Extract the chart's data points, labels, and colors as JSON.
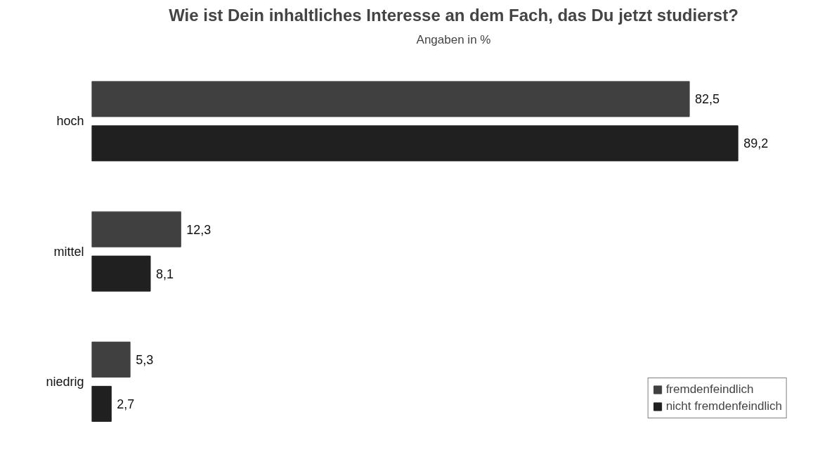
{
  "chart_data": {
    "type": "bar",
    "orientation": "horizontal",
    "title": "Wie ist Dein inhaltliches Interesse an dem Fach, das Du jetzt studierst?",
    "subtitle": "Angaben in %",
    "categories": [
      "hoch",
      "mittel",
      "niedrig"
    ],
    "series": [
      {
        "name": "fremdenfeindlich",
        "color": "#404040",
        "values": [
          82.5,
          12.3,
          5.3
        ],
        "value_labels": [
          "82,5",
          "12,3",
          "5,3"
        ]
      },
      {
        "name": "nicht fremdenfeindlich",
        "color": "#202020",
        "values": [
          89.2,
          8.1,
          2.7
        ],
        "value_labels": [
          "89,2",
          "8,1",
          "2,7"
        ]
      }
    ],
    "grid": false,
    "legend": "bottom right",
    "tick_labels": "y"
  }
}
